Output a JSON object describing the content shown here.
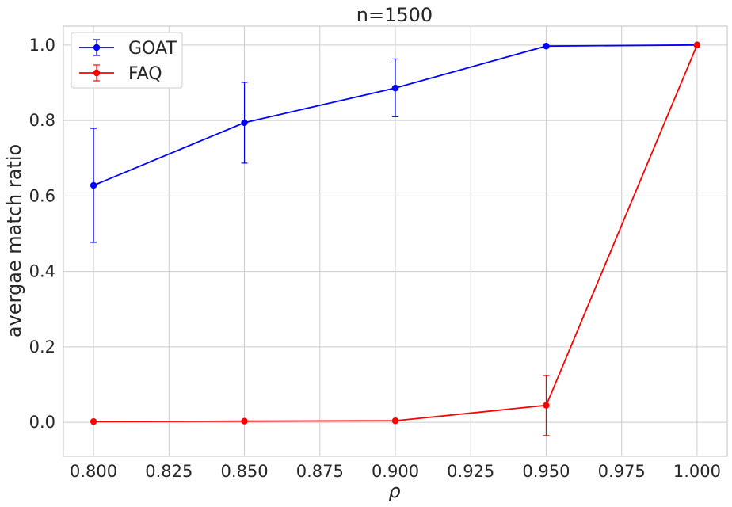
{
  "chart_data": {
    "type": "line",
    "title": "n=1500",
    "xlabel": "ρ",
    "ylabel": "avergae match ratio",
    "x": [
      0.8,
      0.85,
      0.9,
      0.95,
      1.0
    ],
    "xlim": [
      0.79,
      1.01
    ],
    "ylim": [
      -0.09,
      1.05
    ],
    "xticks": [
      "0.800",
      "0.825",
      "0.850",
      "0.875",
      "0.900",
      "0.925",
      "0.950",
      "0.975",
      "1.000"
    ],
    "yticks": [
      "0.0",
      "0.2",
      "0.4",
      "0.6",
      "0.8",
      "1.0"
    ],
    "grid": true,
    "legend_position": "top-left",
    "series": [
      {
        "name": "GOAT",
        "color": "#0000ff",
        "values": [
          0.628,
          0.794,
          0.886,
          0.997,
          1.0
        ],
        "err_low": [
          0.477,
          0.687,
          0.81,
          0.997,
          1.0
        ],
        "err_high": [
          0.779,
          0.901,
          0.963,
          0.997,
          1.0
        ]
      },
      {
        "name": "FAQ",
        "color": "#ff0000",
        "values": [
          0.002,
          0.003,
          0.004,
          0.045,
          1.0
        ],
        "err_low": [
          0.002,
          0.003,
          0.004,
          -0.035,
          1.0
        ],
        "err_high": [
          0.002,
          0.003,
          0.004,
          0.124,
          1.0
        ]
      }
    ]
  }
}
